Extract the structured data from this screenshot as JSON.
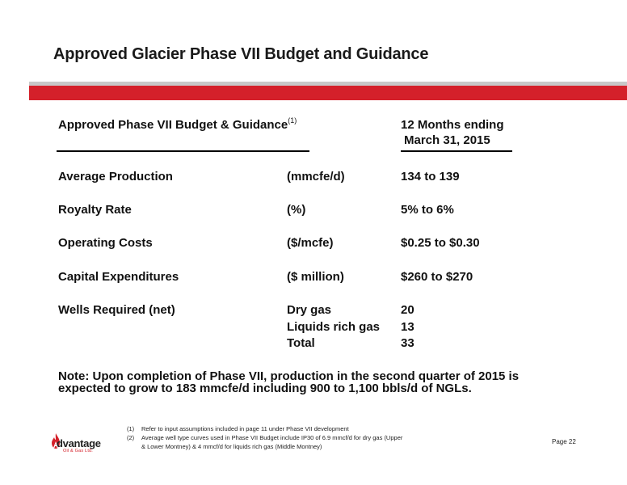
{
  "title": "Approved Glacier Phase VII Budget and Guidance",
  "table": {
    "header_left": "Approved Phase VII Budget & Guidance",
    "header_left_footnote_ref": "(1)",
    "header_right_line1": "12 Months ending",
    "header_right_line2": "March 31, 2015",
    "rows": [
      {
        "label": "Average Production",
        "unit": "(mmcfe/d)",
        "value": "134 to 139"
      },
      {
        "label": "Royalty Rate",
        "unit": "(%)",
        "value": "5% to 6%"
      },
      {
        "label": "Operating Costs",
        "unit": "($/mcfe)",
        "value": "$0.25 to $0.30"
      },
      {
        "label": "Capital Expenditures",
        "unit": "($ million)",
        "value": "$260 to $270"
      },
      {
        "label": "Wells Required (net)",
        "unit": "Dry gas",
        "value": "20"
      },
      {
        "label": "",
        "unit": "Liquids rich gas",
        "value": "13"
      },
      {
        "label": "",
        "unit": "Total",
        "value": "33"
      }
    ]
  },
  "note_line1": "Note: Upon completion of Phase VII, production in the second quarter of 2015 is",
  "note_line2": "expected to grow to 183 mmcfe/d including 900 to 1,100 bbls/d of NGLs.",
  "footnotes": [
    {
      "num": "(1)",
      "lines": [
        "Refer to input assumptions included in page 11 under Phase VII development"
      ]
    },
    {
      "num": "(2)",
      "lines": [
        "Average well type curves used in Phase VII Budget include IP30 of 6.9 mmcf/d for dry gas (Upper",
        "& Lower Montney) & 4 mmcf/d for liquids rich gas (Middle Montney)"
      ]
    }
  ],
  "logo": {
    "word": "dvantage",
    "sub": "Oil & Gas Ltd."
  },
  "page_label": "Page 22",
  "colors": {
    "accent": "#d4202a",
    "band_grey": "#c8c8c8"
  }
}
